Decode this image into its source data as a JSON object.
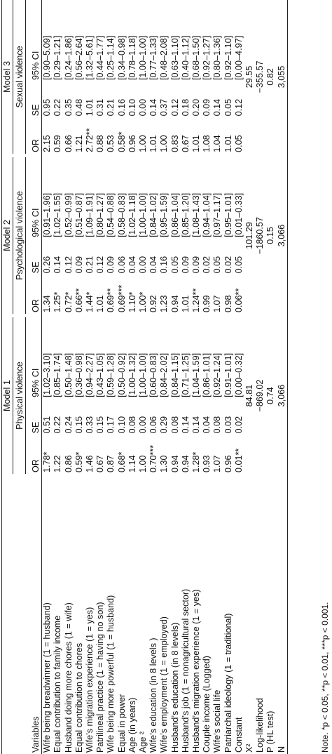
{
  "models": [
    "Model 1",
    "Model 2",
    "Model 3"
  ],
  "outcomes": [
    "Physical violence",
    "Psychological violence",
    "Sexual violence"
  ],
  "column_headers": {
    "variables": "Variables",
    "or": "OR",
    "se": "SE",
    "ci": "95% CI"
  },
  "rows": [
    {
      "label": "Wife being breadwinner (1 = husband)",
      "m1": [
        "1.78*",
        "0.51",
        "[1.02–3.10]"
      ],
      "m2": [
        "1.34",
        "0.26",
        "[0.91–1.96]"
      ],
      "m3": [
        "2.15",
        "0.95",
        "[0.90–5.09]"
      ]
    },
    {
      "label": "Equal contribution to family income",
      "m1": [
        "1.22",
        "0.22",
        "[0.85–1.74]"
      ],
      "m2": [
        "1.25*",
        "0.14",
        "[1.02–1.55]"
      ],
      "m3": [
        "0.59",
        "0.22",
        "[0.29–1.21]"
      ]
    },
    {
      "label": "Husband doing more chores (1 = wife)",
      "m1": [
        "0.86",
        "0.24",
        "[0.50–1.48]"
      ],
      "m2": [
        "0.72*",
        "0.12",
        "[0.52–0.99]"
      ],
      "m3": [
        "0.66",
        "0.35",
        "[0.24–1.86]"
      ]
    },
    {
      "label": "Equal contribution to chores",
      "m1": [
        "0.59*",
        "0.15",
        "[0.36–0.98]"
      ],
      "m2": [
        "0.66**",
        "0.09",
        "[0.51–0.87]"
      ],
      "m3": [
        "1.21",
        "0.48",
        "[0.56–2.64]"
      ]
    },
    {
      "label": "Wife’s migration experience (1 = yes)",
      "m1": [
        "1.46",
        "0.33",
        "[0.94–2.27]"
      ],
      "m2": [
        "1.44*",
        "0.21",
        "[1.09–1.91]"
      ],
      "m3": [
        "2.72**",
        "1.01",
        "[1.32–5.61]"
      ]
    },
    {
      "label": "Patrilineal practice (1 = having no son)",
      "m1": [
        "0.67",
        "0.15",
        "[0.43–1.05]"
      ],
      "m2": [
        "1.01",
        "0.12",
        "[0.80–1.27]"
      ],
      "m3": [
        "0.88",
        "0.31",
        "[0.44–1.77]"
      ]
    },
    {
      "label": "Wife being more powerful (1 = husband)",
      "m1": [
        "0.87",
        "0.17",
        "[0.59–1.28]"
      ],
      "m2": [
        "0.69**",
        "0.09",
        "[0.54–0.88]"
      ],
      "m3": [
        "0.53",
        "0.21",
        "[0.25–1.14]"
      ]
    },
    {
      "label": "Equal in power",
      "m1": [
        "0.68*",
        "0.10",
        "[0.50–0.92]"
      ],
      "m2": [
        "0.69***",
        "0.06",
        "[0.58–0.83]"
      ],
      "m3": [
        "0.58*",
        "0.16",
        "[0.34–0.98]"
      ]
    },
    {
      "label": "Age (in years)",
      "m1": [
        "1.14",
        "0.08",
        "[1.00–1.32]"
      ],
      "m2": [
        "1.10*",
        "0.04",
        "[1.02–1.18]"
      ],
      "m3": [
        "0.96",
        "0.10",
        "[0.78–1.18]"
      ]
    },
    {
      "label": "Age ²",
      "m1": [
        "1.00",
        "0.00",
        "[1.00–1.00]"
      ],
      "m2": [
        "1.00*",
        "0.00",
        "[1.00–1.00]"
      ],
      "m3": [
        "1.00",
        "0.00",
        "[1.00–1.00]"
      ]
    },
    {
      "label": "Wife’s education (in 8 levels )",
      "m1": [
        "0.70***",
        "0.06",
        "[0.60–0.83]"
      ],
      "m2": [
        "0.92",
        "0.04",
        "[0.84–1.02]"
      ],
      "m3": [
        "1.01",
        "0.14",
        "[0.77–1.33]"
      ]
    },
    {
      "label": "Wife’s employment (1 = employed)",
      "m1": [
        "1.30",
        "0.29",
        "[0.84–2.02]"
      ],
      "m2": [
        "1.23",
        "0.16",
        "[0.95–1.59]"
      ],
      "m3": [
        "1.00",
        "0.37",
        "[0.48–2.08]"
      ]
    },
    {
      "label": "Husband’s education (in 8 levels)",
      "m1": [
        "0.94",
        "0.08",
        "[0.84–1.15]"
      ],
      "m2": [
        "0.94",
        "0.05",
        "[0.86–1.04]"
      ],
      "m3": [
        "0.83",
        "0.12",
        "[0.63–1.10]"
      ]
    },
    {
      "label": "Husband’s job (1 = nonagricultural sector)",
      "m1": [
        "0.94",
        "0.14",
        "[0.71–1.25]"
      ],
      "m2": [
        "1.01",
        "0.09",
        "[0.85–1.20]"
      ],
      "m3": [
        "0.67",
        "0.18",
        "[0.40–1.12]"
      ]
    },
    {
      "label": "Husband’s migration experience (1 = yes)",
      "m1": [
        "1.28*",
        "0.14",
        "[1.04–1.59]"
      ],
      "m2": [
        "1.24**",
        "0.09",
        "[1.08–1.43]"
      ],
      "m3": [
        "1.01",
        "0.20",
        "[0.68–1.50]"
      ]
    },
    {
      "label": "Couple income (Logged)",
      "m1": [
        "0.93",
        "0.04",
        "[0.86–1.01]"
      ],
      "m2": [
        "0.99",
        "0.02",
        "[0.94–1.04]"
      ],
      "m3": [
        "1.08",
        "0.09",
        "[0.92–1.27]"
      ]
    },
    {
      "label": "Wife’s social life",
      "m1": [
        "1.07",
        "0.08",
        "[0.92–1.24]"
      ],
      "m2": [
        "1.07",
        "0.05",
        "[0.97–1.17]"
      ],
      "m3": [
        "1.04",
        "0.14",
        "[0.80–1.36]"
      ]
    },
    {
      "label": "Patriarchal ideology (1 = traditional)",
      "m1": [
        "0.96",
        "0.03",
        "[0.91–1.01]"
      ],
      "m2": [
        "0.98",
        "0.02",
        "[0.95–1.01]"
      ],
      "m3": [
        "1.01",
        "0.05",
        "[0.92–1.10]"
      ]
    },
    {
      "label": "Constant",
      "m1": [
        "0.01**",
        "0.02",
        "[0.00–0.32]"
      ],
      "m2": [
        "0.06**",
        "0.05",
        "[0.01–0.33]"
      ],
      "m3": [
        "0.05",
        "0.12",
        "[0.00–4.97]"
      ]
    }
  ],
  "stats": [
    {
      "label": "X²",
      "m1": "84.81",
      "m2": "101.29",
      "m3": "29.55"
    },
    {
      "label": "Log-likelihood",
      "m1": "−869.02",
      "m2": "−1860.57",
      "m3": "−355.57"
    },
    {
      "label": "P (HL test)",
      "m1": "0.74",
      "m2": "0.15",
      "m3": "0.82"
    },
    {
      "label": "N",
      "m1": "3,066",
      "m2": "3,066",
      "m3": "3,055"
    }
  ],
  "note": "Note. *p < 0.05, **p < 0.01, ***p < 0.001."
}
